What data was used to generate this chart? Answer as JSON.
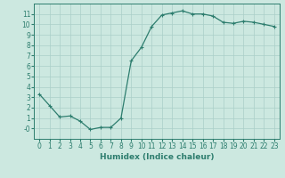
{
  "x": [
    0,
    1,
    2,
    3,
    4,
    5,
    6,
    7,
    8,
    9,
    10,
    11,
    12,
    13,
    14,
    15,
    16,
    17,
    18,
    19,
    20,
    21,
    22,
    23
  ],
  "y": [
    3.3,
    2.2,
    1.1,
    1.2,
    0.7,
    -0.1,
    0.1,
    0.1,
    1.0,
    6.5,
    7.8,
    9.8,
    10.9,
    11.1,
    11.3,
    11.0,
    11.0,
    10.8,
    10.2,
    10.1,
    10.3,
    10.2,
    10.0,
    9.8
  ],
  "line_color": "#2d7d6e",
  "marker": "+",
  "marker_size": 3,
  "marker_linewidth": 0.8,
  "background_color": "#cce8e0",
  "grid_color": "#aacfc8",
  "xlabel": "Humidex (Indice chaleur)",
  "xlim": [
    -0.5,
    23.5
  ],
  "ylim": [
    -1.0,
    12.0
  ],
  "yticks": [
    0,
    1,
    2,
    3,
    4,
    5,
    6,
    7,
    8,
    9,
    10,
    11
  ],
  "ytick_labels": [
    "-0",
    "1",
    "2",
    "3",
    "4",
    "5",
    "6",
    "7",
    "8",
    "9",
    "10",
    "11"
  ],
  "xticks": [
    0,
    1,
    2,
    3,
    4,
    5,
    6,
    7,
    8,
    9,
    10,
    11,
    12,
    13,
    14,
    15,
    16,
    17,
    18,
    19,
    20,
    21,
    22,
    23
  ],
  "xtick_labels": [
    "0",
    "1",
    "2",
    "3",
    "4",
    "5",
    "6",
    "7",
    "8",
    "9",
    "10",
    "11",
    "12",
    "13",
    "14",
    "15",
    "16",
    "17",
    "18",
    "19",
    "20",
    "21",
    "22",
    "23"
  ],
  "tick_fontsize": 5.5,
  "xlabel_fontsize": 6.5,
  "line_color_hex": "#2d7d6e",
  "spine_color": "#2d7d6e",
  "linewidth": 0.9
}
